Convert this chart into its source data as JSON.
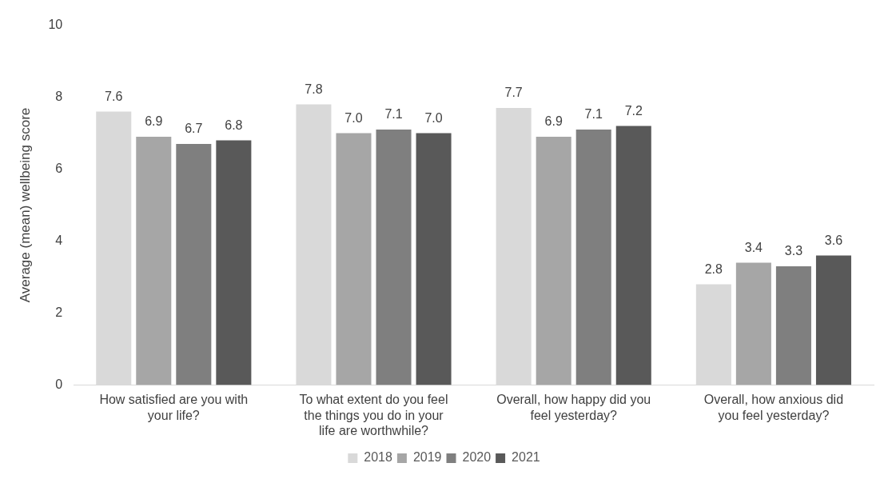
{
  "chart_data": {
    "type": "bar",
    "ylabel": "Average (mean) wellbeing score",
    "categories": [
      "How satisfied are you with your life?",
      "To what extent do you feel the things you do in your life are worthwhile?",
      "Overall, how happy did you feel yesterday?",
      "Overall, how anxious did you feel yesterday?"
    ],
    "series": [
      {
        "name": "2018",
        "color": "#d9d9d9",
        "values": [
          7.6,
          7.8,
          7.7,
          2.8
        ],
        "value_labels": [
          "7.6",
          "7.8",
          "7.7",
          "2.8"
        ]
      },
      {
        "name": "2019",
        "color": "#a6a6a6",
        "values": [
          6.9,
          7.0,
          6.9,
          3.4
        ],
        "value_labels": [
          "6.9",
          "7.0",
          "6.9",
          "3.4"
        ]
      },
      {
        "name": "2020",
        "color": "#7f7f7f",
        "values": [
          6.7,
          7.1,
          7.1,
          3.3
        ],
        "value_labels": [
          "6.7",
          "7.1",
          "7.1",
          "3.3"
        ]
      },
      {
        "name": "2021",
        "color": "#595959",
        "values": [
          6.8,
          7.0,
          7.2,
          3.6
        ],
        "value_labels": [
          "6.8",
          "7.0",
          "7.2",
          "3.6"
        ]
      }
    ],
    "ylim": [
      0,
      10
    ],
    "yticks": [
      0,
      2,
      4,
      6,
      8,
      10
    ],
    "grid": false,
    "legend": "bottom"
  }
}
